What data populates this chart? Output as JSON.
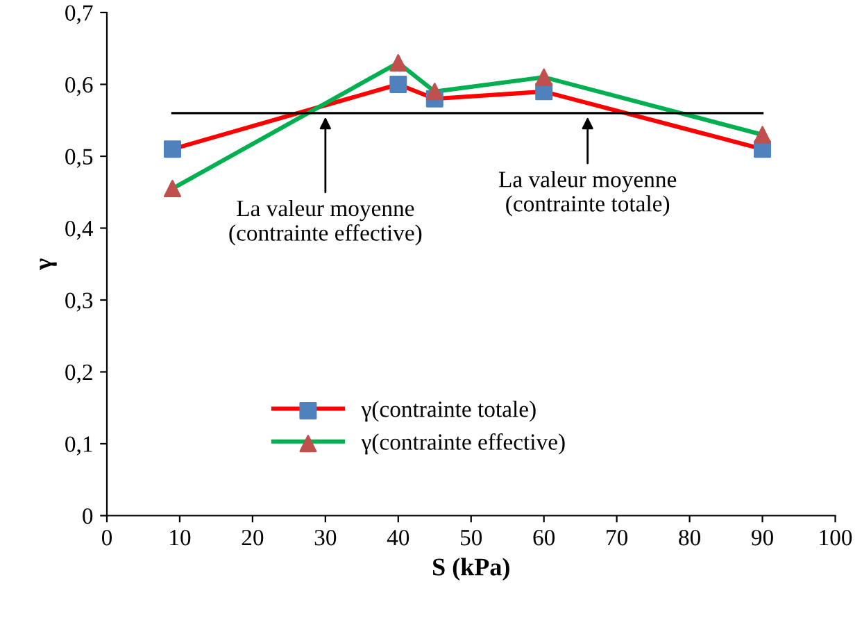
{
  "chart_data": {
    "type": "line",
    "xlabel": "S (kPa)",
    "ylabel": "γ",
    "xlim": [
      0,
      100
    ],
    "xticks": [
      0,
      10,
      20,
      30,
      40,
      50,
      60,
      70,
      80,
      90,
      100
    ],
    "ylim": [
      0,
      0.7
    ],
    "yticks": [
      {
        "value": 0,
        "label": "0"
      },
      {
        "value": 0.1,
        "label": "0,1"
      },
      {
        "value": 0.2,
        "label": "0,2"
      },
      {
        "value": 0.3,
        "label": "0,3"
      },
      {
        "value": 0.4,
        "label": "0,4"
      },
      {
        "value": 0.5,
        "label": "0,5"
      },
      {
        "value": 0.6,
        "label": "0,6"
      },
      {
        "value": 0.7,
        "label": "0,7"
      }
    ],
    "grid": false,
    "legend": "bottom left",
    "series": [
      {
        "name": "γ(contrainte totale)",
        "color": "#ff0000",
        "marker": "square",
        "colors": [
          "#4f81bd",
          "#4f81bd",
          "#4f81bd",
          "#4f81bd",
          "#4f81bd"
        ],
        "x": [
          9,
          40,
          45,
          60,
          90
        ],
        "values": [
          0.51,
          0.6,
          0.58,
          0.59,
          0.51
        ]
      },
      {
        "name": "γ(contrainte effective)",
        "color": "#00b050",
        "marker": "triangle",
        "colors": [
          "#c0504d",
          "#c0504d",
          "#c0504d",
          "#c0504d",
          "#c0504d"
        ],
        "x": [
          9,
          40,
          45,
          60,
          90
        ],
        "values": [
          0.455,
          0.63,
          0.59,
          0.61,
          0.53
        ]
      },
      {
        "color": "#000000",
        "marker": "none",
        "x": [
          9,
          90
        ],
        "values": [
          0.56,
          0.56
        ]
      }
    ],
    "annotations": [
      {
        "text": "La valeur moyenne\n(contrainte effective)",
        "x": 30,
        "y": 0.56
      },
      {
        "text": "La valeur moyenne\n(contrainte totale)",
        "x": 66,
        "y": 0.56
      }
    ]
  }
}
